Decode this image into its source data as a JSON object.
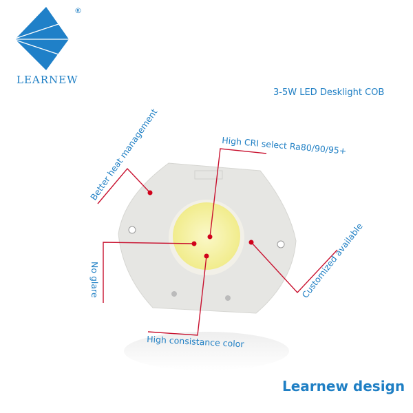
{
  "brand": {
    "name": "LEARNEW",
    "registered_mark": "®",
    "color": "#1f7fc4"
  },
  "product_title": "3-5W LED Desklight COB",
  "features": {
    "heat": "Better heat management",
    "cri": "High CRI select Ra80/90/95+",
    "glare": "No glare",
    "consistency": "High consistance color",
    "custom": "Customized available"
  },
  "footer": "Learnew design",
  "colors": {
    "text": "#1f7fc4",
    "leader": "#c8102e",
    "led": "#f3ef9a"
  }
}
